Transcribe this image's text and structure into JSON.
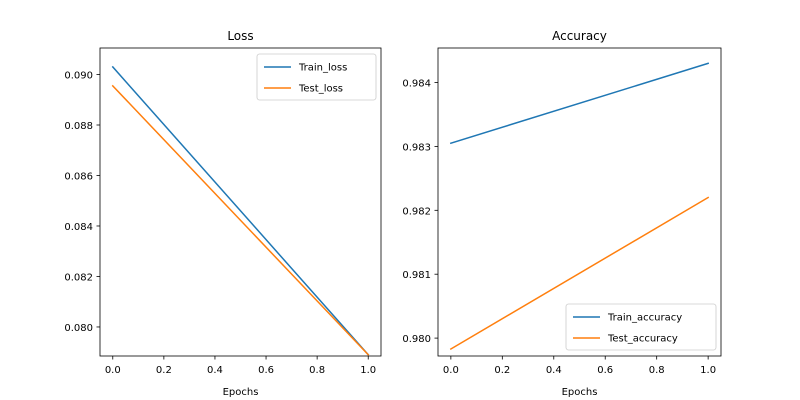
{
  "figure": {
    "background": "#ffffff"
  },
  "colors": {
    "train": "#1f77b4",
    "test": "#ff7f0e",
    "axis": "#000000",
    "legend_border": "#cccccc"
  },
  "chart_data": [
    {
      "type": "line",
      "title": "Loss",
      "xlabel": "Epochs",
      "ylabel": "",
      "x": [
        0,
        1
      ],
      "xlim": [
        -0.05,
        1.05
      ],
      "ylim": [
        0.07885,
        0.09105
      ],
      "xticks": [
        0.0,
        0.2,
        0.4,
        0.6,
        0.8,
        1.0
      ],
      "xtick_labels": [
        "0.0",
        "0.2",
        "0.4",
        "0.6",
        "0.8",
        "1.0"
      ],
      "yticks": [
        0.08,
        0.082,
        0.084,
        0.086,
        0.088,
        0.09
      ],
      "ytick_labels": [
        "0.080",
        "0.082",
        "0.084",
        "0.086",
        "0.088",
        "0.090"
      ],
      "grid": false,
      "legend_position": "upper right",
      "series": [
        {
          "name": "Train_loss",
          "color": "#1f77b4",
          "values": [
            0.0903,
            0.0789
          ]
        },
        {
          "name": "Test_loss",
          "color": "#ff7f0e",
          "values": [
            0.08955,
            0.0789
          ]
        }
      ]
    },
    {
      "type": "line",
      "title": "Accuracy",
      "xlabel": "Epochs",
      "ylabel": "",
      "x": [
        0,
        1
      ],
      "xlim": [
        -0.05,
        1.05
      ],
      "ylim": [
        0.97972,
        0.98454
      ],
      "xticks": [
        0.0,
        0.2,
        0.4,
        0.6,
        0.8,
        1.0
      ],
      "xtick_labels": [
        "0.0",
        "0.2",
        "0.4",
        "0.6",
        "0.8",
        "1.0"
      ],
      "yticks": [
        0.98,
        0.981,
        0.982,
        0.983,
        0.984
      ],
      "ytick_labels": [
        "0.980",
        "0.981",
        "0.982",
        "0.983",
        "0.984"
      ],
      "grid": false,
      "legend_position": "lower right",
      "series": [
        {
          "name": "Train_accuracy",
          "color": "#1f77b4",
          "values": [
            0.98305,
            0.9843
          ]
        },
        {
          "name": "Test_accuracy",
          "color": "#ff7f0e",
          "values": [
            0.97983,
            0.9822
          ]
        }
      ]
    }
  ]
}
